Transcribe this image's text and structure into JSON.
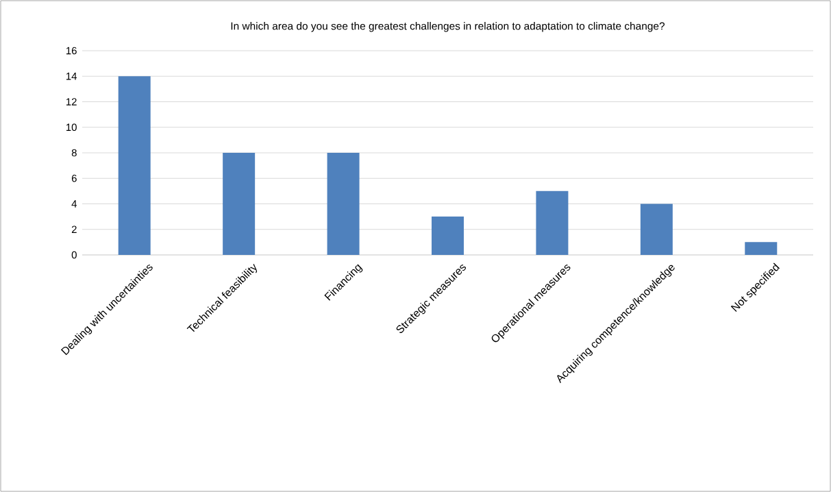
{
  "chart_data": {
    "type": "bar",
    "title": "In which area do you see the greatest challenges in relation to adaptation to climate change?",
    "categories": [
      "Dealing with uncertainties",
      "Technical feasibility",
      "Financing",
      "Strategic measures",
      "Operational measures",
      "Acquiring competence/knowledge",
      "Not specified"
    ],
    "values": [
      14,
      8,
      8,
      3,
      5,
      4,
      1
    ],
    "color": "#4f81bd",
    "ylim": [
      0,
      16
    ],
    "yticks": [
      0,
      2,
      4,
      6,
      8,
      10,
      12,
      14,
      16
    ],
    "grid": "y"
  }
}
